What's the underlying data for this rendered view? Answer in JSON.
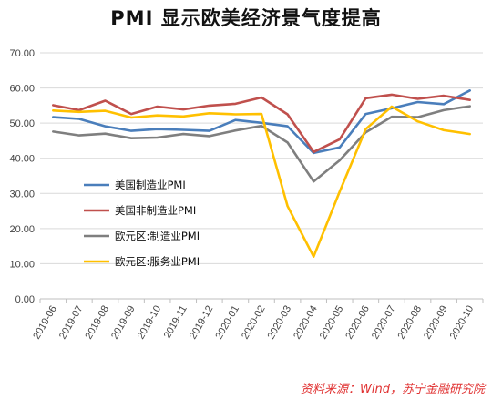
{
  "chart_data": {
    "type": "line",
    "title": "PMI 显示欧美经济景气度提高",
    "source": "资料来源：Wind，苏宁金融研究院",
    "ylim": [
      0,
      70
    ],
    "yticks": [
      "0.00",
      "10.00",
      "20.00",
      "30.00",
      "40.00",
      "50.00",
      "60.00",
      "70.00"
    ],
    "categories": [
      "2019-06",
      "2019-07",
      "2019-08",
      "2019-09",
      "2019-10",
      "2019-11",
      "2019-12",
      "2020-01",
      "2020-02",
      "2020-03",
      "2020-04",
      "2020-05",
      "2020-06",
      "2020-07",
      "2020-08",
      "2020-09",
      "2020-10"
    ],
    "grid": true,
    "legend_position": "left-middle",
    "series": [
      {
        "name": "美国制造业PMI",
        "color": "#4a7ebb",
        "values": [
          51.7,
          51.2,
          49.1,
          47.8,
          48.3,
          48.1,
          47.8,
          50.9,
          50.1,
          49.1,
          41.5,
          43.1,
          52.6,
          54.2,
          56.0,
          55.4,
          59.3
        ]
      },
      {
        "name": "美国非制造业PMI",
        "color": "#c0504d",
        "values": [
          55.1,
          53.7,
          56.4,
          52.6,
          54.7,
          53.9,
          55.0,
          55.5,
          57.3,
          52.5,
          41.8,
          45.4,
          57.1,
          58.1,
          56.9,
          57.8,
          56.6
        ]
      },
      {
        "name": "欧元区:制造业PMI",
        "color": "#7f7f7f",
        "values": [
          47.6,
          46.5,
          47.0,
          45.7,
          45.9,
          46.9,
          46.3,
          47.9,
          49.2,
          44.5,
          33.4,
          39.4,
          47.4,
          51.8,
          51.7,
          53.7,
          54.8
        ]
      },
      {
        "name": "欧元区:服务业PMI",
        "color": "#ffc000",
        "values": [
          53.6,
          53.2,
          53.5,
          51.6,
          52.2,
          51.9,
          52.8,
          52.5,
          52.6,
          26.4,
          12.0,
          30.5,
          48.3,
          54.7,
          50.5,
          48.0,
          46.9
        ]
      }
    ]
  }
}
